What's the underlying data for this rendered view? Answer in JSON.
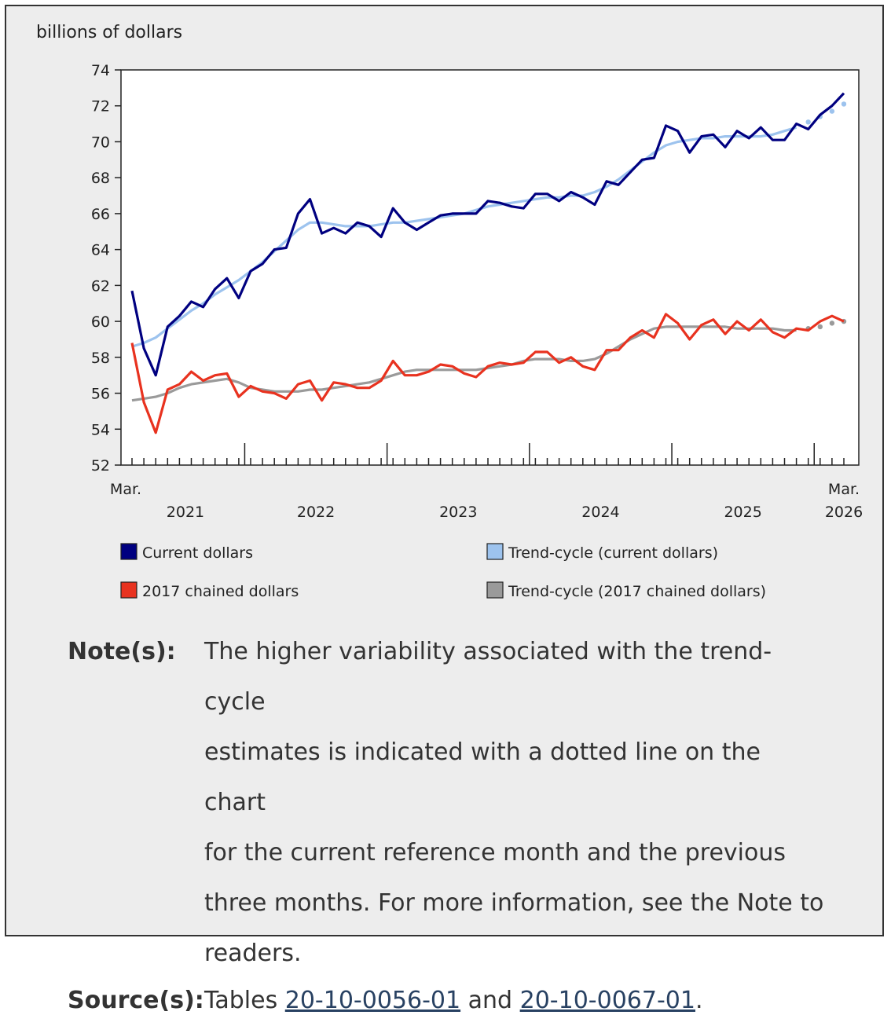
{
  "chart_data": {
    "type": "line",
    "ylabel": "billions of dollars",
    "ylim": [
      52,
      74
    ],
    "yticks": [
      52,
      54,
      56,
      58,
      60,
      62,
      64,
      66,
      68,
      70,
      72,
      74
    ],
    "x_start_label": [
      "Mar.",
      ""
    ],
    "x_end_label": [
      "Mar.",
      "2026"
    ],
    "year_labels": [
      "2021",
      "2022",
      "2023",
      "2024",
      "2025"
    ],
    "x_period": "monthly, March 2021 to March 2026",
    "grid": false,
    "legend_position": "bottom",
    "series": [
      {
        "name": "Current dollars",
        "color": "#000080",
        "style": "solid",
        "values": [
          61.7,
          58.5,
          57.0,
          59.7,
          60.3,
          61.1,
          60.8,
          61.8,
          62.4,
          61.3,
          62.8,
          63.2,
          64.0,
          64.1,
          66.0,
          66.8,
          64.9,
          65.2,
          64.9,
          65.5,
          65.3,
          64.7,
          66.3,
          65.5,
          65.1,
          65.5,
          65.9,
          66.0,
          66.0,
          66.0,
          66.7,
          66.6,
          66.4,
          66.3,
          67.1,
          67.1,
          66.7,
          67.2,
          66.9,
          66.5,
          67.8,
          67.6,
          68.3,
          69.0,
          69.1,
          70.9,
          70.6,
          69.4,
          70.3,
          70.4,
          69.7,
          70.6,
          70.2,
          70.8,
          70.1,
          70.1,
          71.0,
          70.7,
          71.5,
          72.0,
          72.7
        ]
      },
      {
        "name": "Trend-cycle (current dollars)",
        "color": "#9dc3ee",
        "style": "solid-then-dotted",
        "dotted_last": 4,
        "values": [
          58.6,
          58.8,
          59.1,
          59.6,
          60.1,
          60.6,
          61.0,
          61.5,
          61.9,
          62.3,
          62.8,
          63.3,
          63.9,
          64.5,
          65.1,
          65.5,
          65.5,
          65.4,
          65.3,
          65.3,
          65.3,
          65.4,
          65.5,
          65.5,
          65.6,
          65.7,
          65.8,
          65.9,
          66.0,
          66.2,
          66.4,
          66.5,
          66.6,
          66.7,
          66.8,
          66.9,
          66.9,
          67.0,
          67.0,
          67.2,
          67.5,
          67.9,
          68.4,
          68.9,
          69.4,
          69.8,
          70.0,
          70.1,
          70.2,
          70.2,
          70.3,
          70.3,
          70.3,
          70.3,
          70.4,
          70.6,
          70.8,
          71.1,
          71.4,
          71.7,
          72.1
        ]
      },
      {
        "name": "2017 chained dollars",
        "color": "#e8321f",
        "style": "solid",
        "values": [
          58.8,
          55.5,
          53.8,
          56.2,
          56.5,
          57.2,
          56.7,
          57.0,
          57.1,
          55.8,
          56.4,
          56.1,
          56.0,
          55.7,
          56.5,
          56.7,
          55.6,
          56.6,
          56.5,
          56.3,
          56.3,
          56.7,
          57.8,
          57.0,
          57.0,
          57.2,
          57.6,
          57.5,
          57.1,
          56.9,
          57.5,
          57.7,
          57.6,
          57.7,
          58.3,
          58.3,
          57.7,
          58.0,
          57.5,
          57.3,
          58.4,
          58.4,
          59.1,
          59.5,
          59.1,
          60.4,
          59.9,
          59.0,
          59.8,
          60.1,
          59.3,
          60.0,
          59.5,
          60.1,
          59.4,
          59.1,
          59.6,
          59.5,
          60.0,
          60.3,
          60.0
        ]
      },
      {
        "name": "Trend-cycle (2017 chained dollars)",
        "color": "#9a9a9a",
        "style": "solid-then-dotted",
        "dotted_last": 4,
        "values": [
          55.6,
          55.7,
          55.8,
          56.0,
          56.3,
          56.5,
          56.6,
          56.7,
          56.8,
          56.6,
          56.3,
          56.2,
          56.1,
          56.1,
          56.1,
          56.2,
          56.2,
          56.3,
          56.4,
          56.5,
          56.6,
          56.8,
          57.0,
          57.2,
          57.3,
          57.3,
          57.3,
          57.3,
          57.3,
          57.3,
          57.4,
          57.5,
          57.6,
          57.8,
          57.9,
          57.9,
          57.9,
          57.8,
          57.8,
          57.9,
          58.2,
          58.6,
          59.0,
          59.3,
          59.6,
          59.7,
          59.7,
          59.7,
          59.7,
          59.7,
          59.7,
          59.6,
          59.6,
          59.6,
          59.6,
          59.5,
          59.5,
          59.6,
          59.7,
          59.9,
          60.0
        ]
      }
    ],
    "legend": [
      {
        "label": "Current dollars",
        "color": "#000080"
      },
      {
        "label": "Trend-cycle (current dollars)",
        "color": "#9dc3ee"
      },
      {
        "label": "2017 chained dollars",
        "color": "#e8321f"
      },
      {
        "label": "Trend-cycle (2017 chained dollars)",
        "color": "#9a9a9a"
      }
    ]
  },
  "notes": {
    "note_heading": "Note(s):",
    "note_lines": [
      "The higher variability associated with the trend-cycle",
      "estimates is indicated with a dotted line on the chart",
      "for the current reference month and the previous",
      "three months. For more information, see the Note to",
      "readers."
    ],
    "source_heading": "Source(s):",
    "source_prefix": "Tables ",
    "source_link_1": "20-10-0056-01",
    "source_between": " and ",
    "source_link_2": "20-10-0067-01",
    "source_suffix": "."
  }
}
